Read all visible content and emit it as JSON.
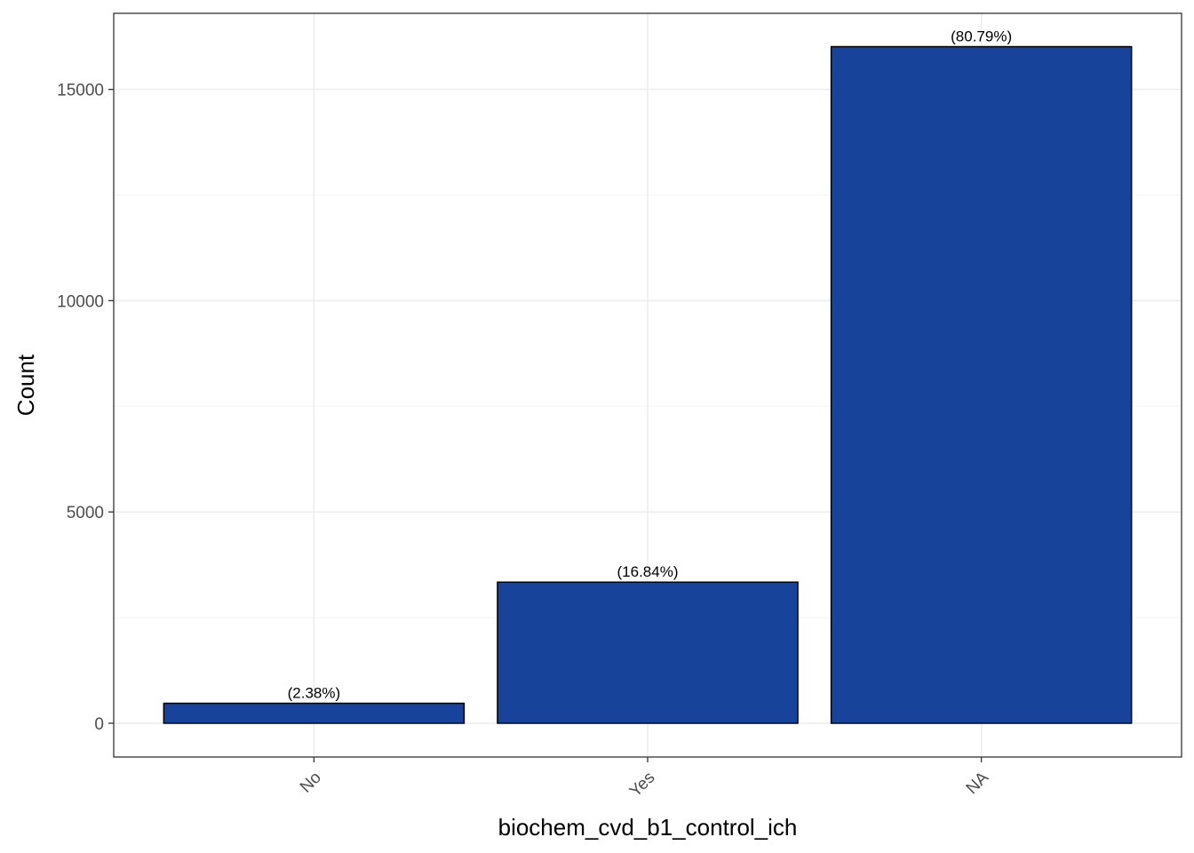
{
  "chart_data": {
    "type": "bar",
    "title": "",
    "xlabel": "biochem_cvd_b1_control_ich",
    "ylabel": "Count",
    "categories": [
      "No",
      "Yes",
      "NA"
    ],
    "values": [
      472,
      3338,
      16011
    ],
    "labels": [
      "(2.38%)",
      "(16.84%)",
      "(80.79%)"
    ],
    "ylim": [
      -800,
      16800
    ],
    "yticks": [
      0,
      5000,
      10000,
      15000
    ],
    "ytick_labels": [
      "0",
      "5000",
      "10000",
      "15000"
    ],
    "grid": true,
    "legend": "none",
    "colors": {
      "bar_fill": "#17449a",
      "bar_stroke": "#000000",
      "grid_major": "#ebebeb",
      "grid_minor": "#f5f5f5",
      "panel_border": "#333333"
    }
  }
}
